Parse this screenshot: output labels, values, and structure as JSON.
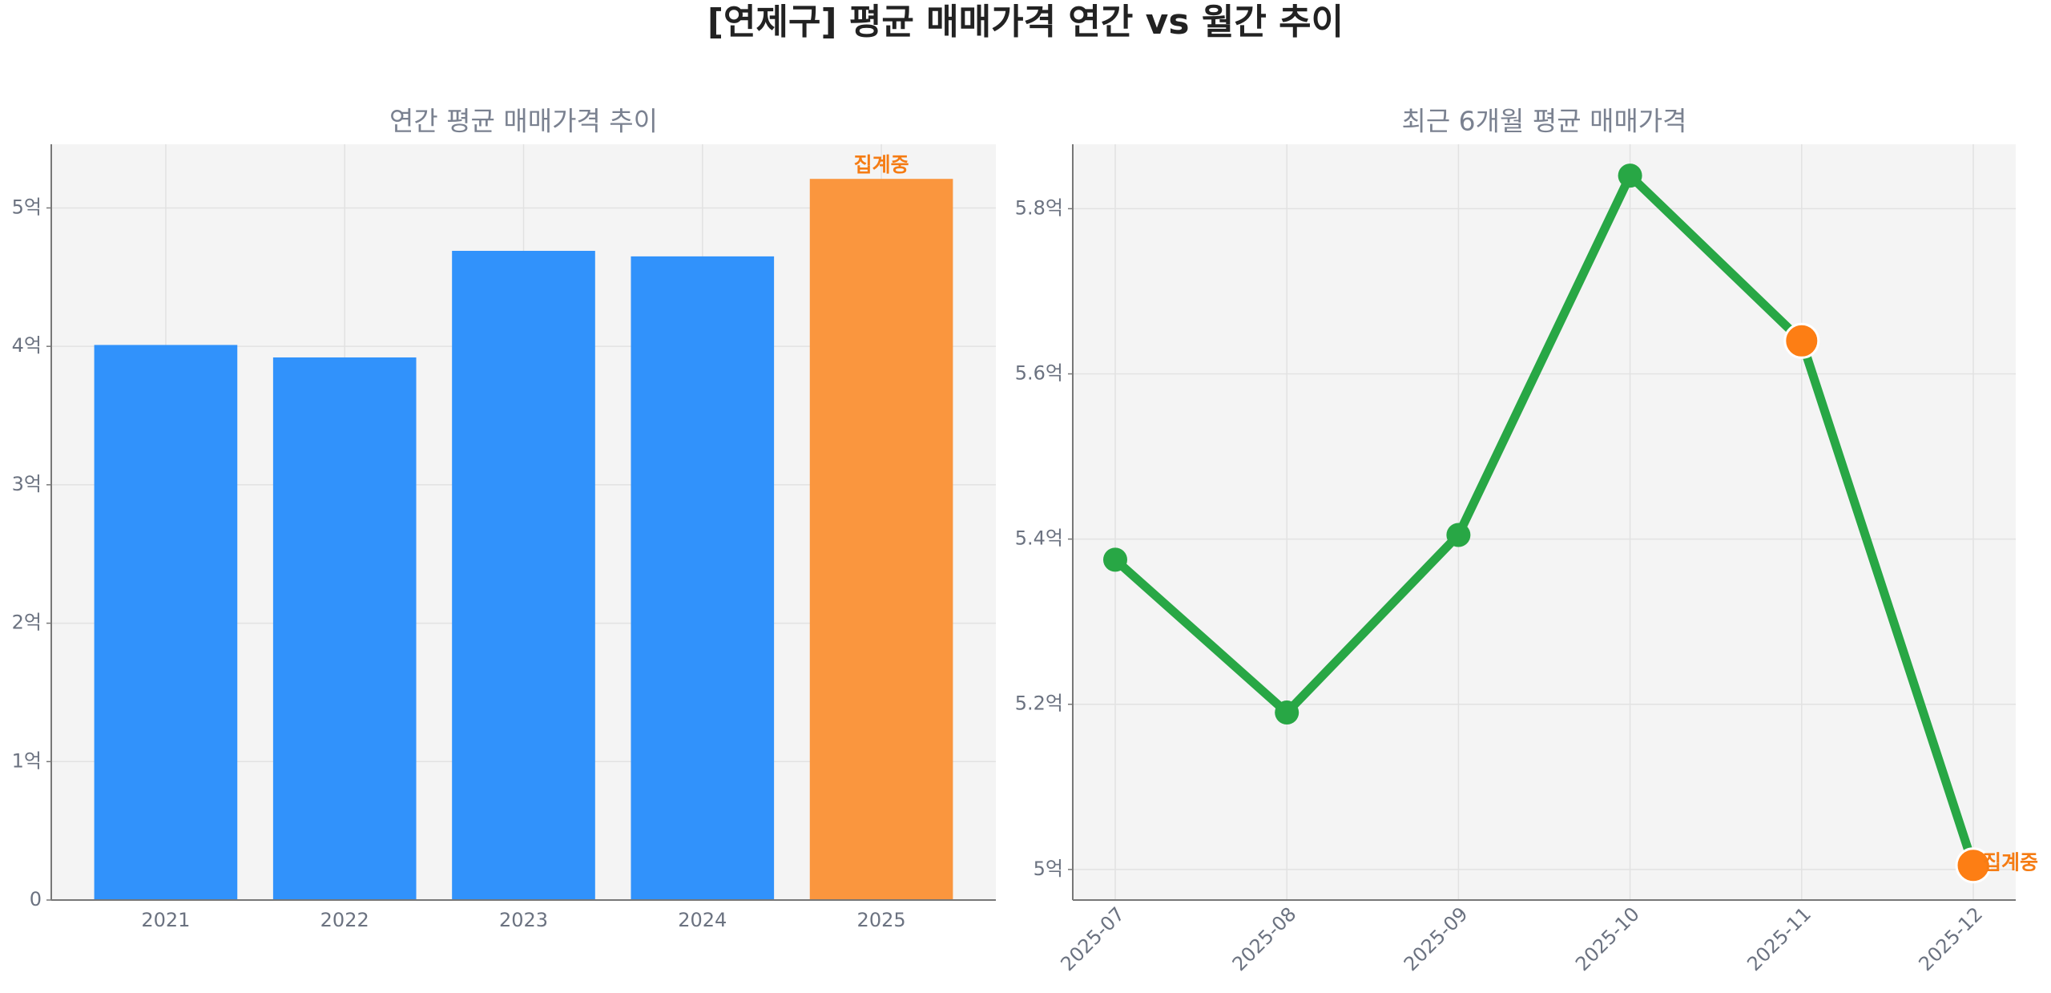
{
  "title": "[연제구] 평균 매매가격 연간 vs 월간 추이",
  "chart_data": [
    {
      "type": "bar",
      "title": "연간 평균 매매가격 추이",
      "categories": [
        "2021",
        "2022",
        "2023",
        "2024",
        "2025"
      ],
      "values": [
        4.01,
        3.92,
        4.69,
        4.65,
        5.21
      ],
      "colors": [
        "#3192fb",
        "#3192fb",
        "#3192fb",
        "#3192fb",
        "#fa963e"
      ],
      "ylim": [
        0,
        5.46
      ],
      "yticks": [
        0,
        {
          "value": 1,
          "label": "1억"
        },
        {
          "value": 2,
          "label": "2억"
        },
        {
          "value": 3,
          "label": "3억"
        },
        {
          "value": 4,
          "label": "4억"
        },
        {
          "value": 5,
          "label": "5억"
        }
      ],
      "annotations": [
        {
          "text": "집계중",
          "index": 4,
          "color": "#f57c14"
        }
      ],
      "grid": true
    },
    {
      "type": "line",
      "title": "최근 6개월 평균 매매가격",
      "categories": [
        "2025-07",
        "2025-08",
        "2025-09",
        "2025-10",
        "2025-11",
        "2025-12"
      ],
      "series": [
        {
          "color": "#28a745",
          "values": [
            5.375,
            5.19,
            5.405,
            5.84,
            5.64,
            5.005
          ],
          "marker_colors": [
            "#28a745",
            "#28a745",
            "#28a745",
            "#28a745",
            "#fd7e14",
            "#fd7e14"
          ]
        }
      ],
      "ylim": [
        4.963,
        5.878
      ],
      "yticks": [
        {
          "value": 5,
          "label": "5억"
        },
        {
          "value": 5.2,
          "label": "5.2억"
        },
        {
          "value": 5.4,
          "label": "5.4억"
        },
        {
          "value": 5.6,
          "label": "5.6억"
        },
        {
          "value": 5.8,
          "label": "5.8억"
        }
      ],
      "annotations": [
        {
          "text": "집계중",
          "index": 5,
          "color": "#f57c14"
        }
      ],
      "grid": true
    }
  ]
}
